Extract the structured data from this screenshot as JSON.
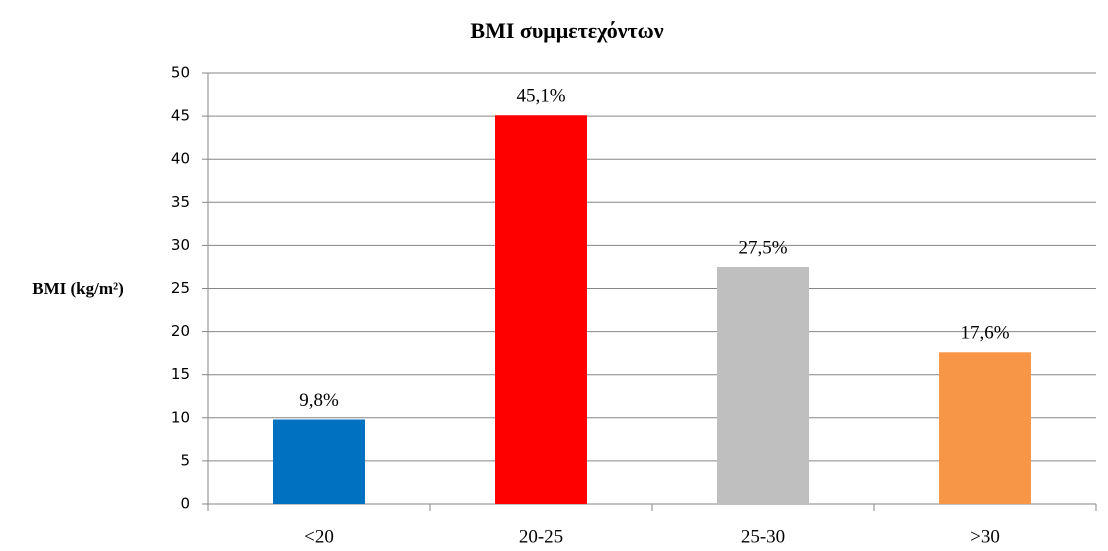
{
  "chart_data": {
    "type": "bar",
    "title": "BMI συμμετεχόντων",
    "y_label": "BMI (kg/m²)",
    "categories": [
      "<20",
      "20-25",
      "25-30",
      ">30"
    ],
    "values": [
      9.8,
      45.1,
      27.5,
      17.6
    ],
    "value_labels": [
      "9,8%",
      "45,1%",
      "27,5%",
      "17,6%"
    ],
    "colors": [
      "#0070c0",
      "#ff0000",
      "#bfbfbf",
      "#f79646"
    ],
    "ylim": [
      0,
      50
    ],
    "yticks": [
      0,
      5,
      10,
      15,
      20,
      25,
      30,
      35,
      40,
      45,
      50
    ],
    "grid": true
  }
}
